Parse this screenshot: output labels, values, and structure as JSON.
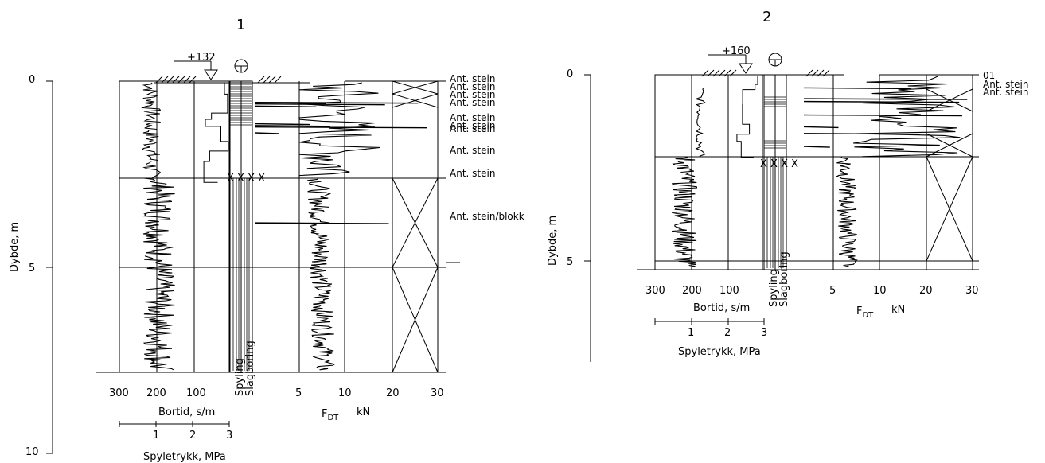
{
  "chart_data": [
    {
      "type": "line",
      "title": "1",
      "ylabel": "Dybde, m",
      "depth_ticks": [
        "0",
        "5",
        "10"
      ],
      "elevation_label": "+132",
      "bortid": {
        "xlabel": "Bortid, s/m",
        "ticks": [
          "300",
          "200",
          "100"
        ]
      },
      "spyletrykk": {
        "xlabel": "Spyletrykk, MPa",
        "ticks": [
          "1",
          "2",
          "3"
        ]
      },
      "method_labels": [
        "Spyling",
        "Slagboring"
      ],
      "fdt": {
        "xlabel_main": "F",
        "xlabel_sub": "DT",
        "unit": "kN",
        "ticks": [
          "5",
          "10",
          "20",
          "30"
        ]
      },
      "annotations": [
        "Ant. stein",
        "Ant. stein",
        "Ant. stein",
        "Ant. stein",
        "Ant. stein",
        "Ant. stein",
        "Ant. stein",
        "Ant. stein",
        "Ant. stein",
        "Ant. stein/blokk"
      ]
    },
    {
      "type": "line",
      "title": "2",
      "ylabel": "Dybde, m",
      "depth_ticks": [
        "0",
        "5"
      ],
      "elevation_label": "+160",
      "bortid": {
        "xlabel": "Bortid, s/m",
        "ticks": [
          "300",
          "200",
          "100"
        ]
      },
      "spyletrykk": {
        "xlabel": "Spyletrykk, MPa",
        "ticks": [
          "1",
          "2",
          "3"
        ]
      },
      "method_labels": [
        "Spyling",
        "Slagboring"
      ],
      "fdt": {
        "xlabel_main": "F",
        "xlabel_sub": "DT",
        "unit": "kN",
        "ticks": [
          "5",
          "10",
          "20",
          "30"
        ]
      },
      "annotations": [
        "01",
        "Ant. stein",
        "Ant. stein"
      ]
    }
  ]
}
